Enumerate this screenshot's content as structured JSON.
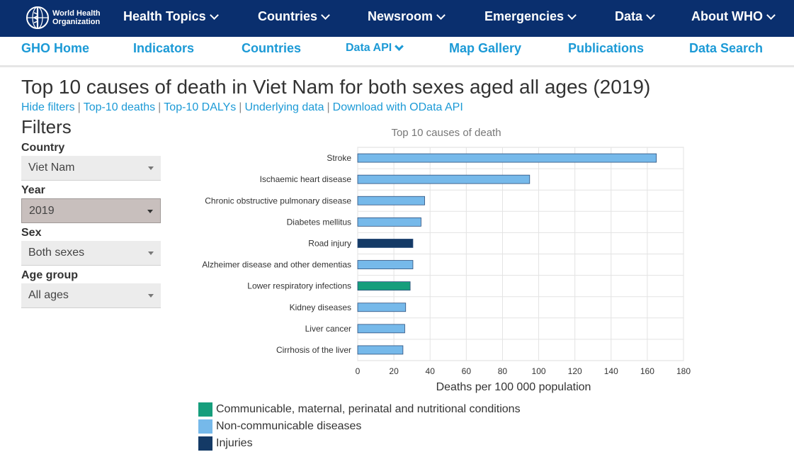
{
  "header": {
    "logo_line1": "World Health",
    "logo_line2": "Organization",
    "nav": [
      "Health Topics",
      "Countries",
      "Newsroom",
      "Emergencies",
      "Data",
      "About WHO"
    ]
  },
  "subnav": [
    "GHO Home",
    "Indicators",
    "Countries",
    "Data API",
    "Map Gallery",
    "Publications",
    "Data Search"
  ],
  "page": {
    "title": "Top 10 causes of death in Viet Nam for both sexes aged all ages (2019)",
    "links": [
      "Hide filters",
      "Top-10 deaths",
      "Top-10 DALYs",
      "Underlying data",
      "Download with OData API"
    ]
  },
  "filters": {
    "heading": "Filters",
    "country_label": "Country",
    "country_value": "Viet Nam",
    "year_label": "Year",
    "year_value": "2019",
    "sex_label": "Sex",
    "sex_value": "Both sexes",
    "age_label": "Age group",
    "age_value": "All ages"
  },
  "colors": {
    "communicable": "#169e7c",
    "noncommunicable": "#76b9ea",
    "injuries": "#143a66",
    "nav_bg": "#0a2f6e",
    "link": "#1c9ad6"
  },
  "chart_data": {
    "type": "bar",
    "orientation": "horizontal",
    "title": "Top 10 causes of death",
    "xlabel": "Deaths per 100 000 population",
    "xlim": [
      0,
      180
    ],
    "xticks": [
      0,
      20,
      40,
      60,
      80,
      100,
      120,
      140,
      160,
      180
    ],
    "grid": true,
    "categories": [
      "Stroke",
      "Ischaemic heart disease",
      "Chronic obstructive pulmonary disease",
      "Diabetes mellitus",
      "Road injury",
      "Alzheimer disease and other dementias",
      "Lower respiratory infections",
      "Kidney diseases",
      "Liver cancer",
      "Cirrhosis of the liver"
    ],
    "values": [
      165,
      95,
      37,
      35,
      30.5,
      30.5,
      29,
      26.5,
      26,
      25
    ],
    "groups": [
      "noncommunicable",
      "noncommunicable",
      "noncommunicable",
      "noncommunicable",
      "injuries",
      "noncommunicable",
      "communicable",
      "noncommunicable",
      "noncommunicable",
      "noncommunicable"
    ],
    "legend": [
      {
        "key": "communicable",
        "label": "Communicable, maternal, perinatal and nutritional conditions"
      },
      {
        "key": "noncommunicable",
        "label": "Non-communicable diseases"
      },
      {
        "key": "injuries",
        "label": "Injuries"
      }
    ],
    "legend_position": "bottom"
  }
}
